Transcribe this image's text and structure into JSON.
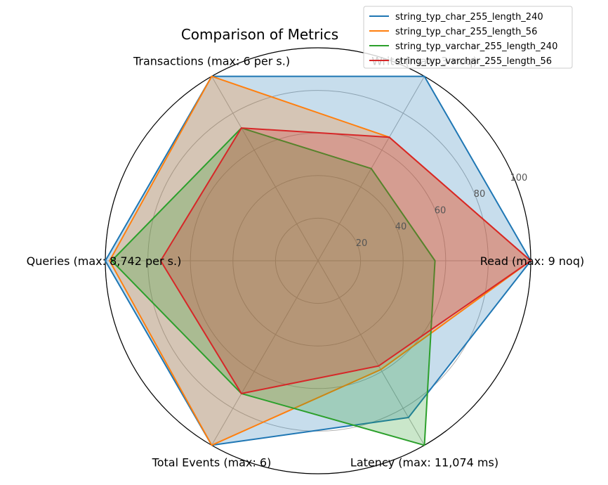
{
  "chart_data": {
    "type": "radar",
    "title": "Comparison of Metrics",
    "axes": [
      "Read (max: 9 noq)",
      "Write (max: 3 noq)",
      "Transactions (max: 6 per s.)",
      "Queries (max: 8,742 per s.)",
      "Total Events (max: 6)",
      "Latency (max: 11,074 ms)"
    ],
    "rlim": [
      0,
      100
    ],
    "rticks": [
      "20",
      "40",
      "60",
      "80",
      "100"
    ],
    "rtick_values": [
      20,
      40,
      60,
      80,
      100
    ],
    "grid": true,
    "legend_position": "top-right",
    "series": [
      {
        "name": "string_typ_char_255_length_240",
        "color": "#1f77b4",
        "values": [
          100,
          100,
          100,
          100,
          100,
          85
        ]
      },
      {
        "name": "string_typ_char_255_length_56",
        "color": "#ff7f0e",
        "values": [
          100,
          67,
          100,
          98,
          100,
          59
        ]
      },
      {
        "name": "string_typ_varchar_255_length_240",
        "color": "#2ca02c",
        "values": [
          55,
          50,
          72,
          97,
          72,
          100
        ]
      },
      {
        "name": "string_typ_varchar_255_length_56",
        "color": "#d62728",
        "values": [
          100,
          67,
          72,
          74,
          72,
          57
        ]
      }
    ]
  }
}
